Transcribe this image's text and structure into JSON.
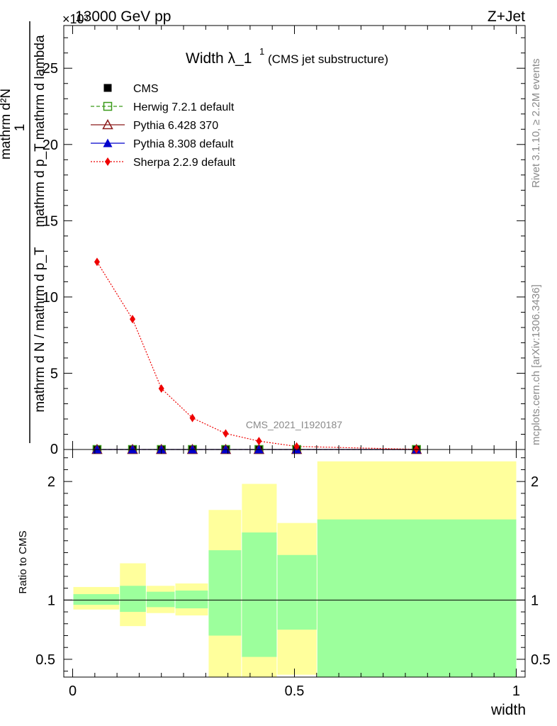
{
  "header": {
    "energy": "13000 GeV pp",
    "process": "Z+Jet",
    "exponent": "×10³"
  },
  "title": {
    "main": "Width λ_1",
    "sup": "1",
    "sub": "(CMS jet substructure)"
  },
  "side_labels": {
    "rivet": "Rivet 3.1.10, ≥ 2.2M events",
    "mcplots": "mcplots.cern.ch [arXiv:1306.3436]"
  },
  "watermark": "CMS_2021_I1920187",
  "axes": {
    "ylabel_top_numerator": "mathrm d²N",
    "ylabel_top_denominator": "mathrm d p_T mathrm d lambda",
    "ylabel_top_prefix_num": "1",
    "ylabel_top_prefix_den": "mathrm d N / mathrm d p_T",
    "ylabel_bottom": "Ratio to CMS",
    "xlabel": "width"
  },
  "colors": {
    "cms": "#000000",
    "herwig": "#3a9a1a",
    "pythia6": "#8b1a1a",
    "pythia8": "#0000cc",
    "sherpa": "#ee0000",
    "band_inner": "#9cff9c",
    "band_outer": "#ffff9c"
  },
  "chart_data": {
    "main_panel": {
      "type": "line",
      "xlim": [
        -0.02,
        1.02
      ],
      "ylim": [
        0,
        27.8
      ],
      "y_multiplier": "×10³",
      "x_ticks": [
        "0",
        "0.5",
        "1"
      ],
      "y_ticks": [
        "5",
        "10",
        "15",
        "20",
        "25"
      ],
      "y_tick_values": [
        5,
        10,
        15,
        20,
        25
      ],
      "legend_position": "top-left",
      "series": [
        {
          "name": "CMS",
          "marker": "square",
          "x": [
            0.055,
            0.135,
            0.2,
            0.27,
            0.345,
            0.42,
            0.505,
            0.775
          ],
          "y": [
            0.0,
            0.0,
            0.0,
            0.0,
            0.0,
            0.0,
            0.0,
            0.0
          ]
        },
        {
          "name": "Herwig 7.2.1 default",
          "marker": "open-square",
          "x": [
            0.055,
            0.135,
            0.2,
            0.27,
            0.345,
            0.42,
            0.505,
            0.775
          ],
          "y": [
            0.0,
            0.0,
            0.0,
            0.0,
            0.0,
            0.0,
            0.0,
            0.0
          ]
        },
        {
          "name": "Pythia 6.428 370",
          "marker": "open-triangle",
          "x": [
            0.055,
            0.135,
            0.2,
            0.27,
            0.345,
            0.42,
            0.505,
            0.775
          ],
          "y": [
            0.0,
            0.0,
            0.0,
            0.0,
            0.0,
            0.0,
            0.0,
            0.0
          ]
        },
        {
          "name": "Pythia 8.308 default",
          "marker": "triangle",
          "x": [
            0.055,
            0.135,
            0.2,
            0.27,
            0.345,
            0.42,
            0.505,
            0.775
          ],
          "y": [
            0.0,
            0.0,
            0.0,
            0.0,
            0.0,
            0.0,
            0.0,
            0.0
          ]
        },
        {
          "name": "Sherpa 2.2.9 default",
          "marker": "diamond",
          "x": [
            0.055,
            0.135,
            0.2,
            0.27,
            0.345,
            0.42,
            0.505,
            0.775
          ],
          "y": [
            12.3,
            8.55,
            4.0,
            2.07,
            1.05,
            0.55,
            0.2,
            0.01
          ]
        }
      ]
    },
    "ratio_panel": {
      "type": "area",
      "xlim": [
        -0.02,
        1.02
      ],
      "ylim": [
        0.35,
        2.27
      ],
      "y_ticks": [
        "0.5",
        "1",
        "2"
      ],
      "y_tick_values": [
        0.5,
        1,
        2
      ],
      "reference_line": 1,
      "bins": [
        {
          "x": [
            0.0,
            0.105
          ],
          "inner": [
            0.96,
            1.05
          ],
          "outer": [
            0.92,
            1.11
          ]
        },
        {
          "x": [
            0.105,
            0.165
          ],
          "inner": [
            0.9,
            1.12
          ],
          "outer": [
            0.78,
            1.31
          ]
        },
        {
          "x": [
            0.165,
            0.23
          ],
          "inner": [
            0.94,
            1.07
          ],
          "outer": [
            0.89,
            1.12
          ]
        },
        {
          "x": [
            0.23,
            0.305
          ],
          "inner": [
            0.93,
            1.08
          ],
          "outer": [
            0.87,
            1.14
          ]
        },
        {
          "x": [
            0.305,
            0.38
          ],
          "inner": [
            0.7,
            1.42
          ],
          "outer": [
            0.35,
            1.76
          ]
        },
        {
          "x": [
            0.38,
            0.46
          ],
          "inner": [
            0.52,
            1.57
          ],
          "outer": [
            0.35,
            1.98
          ]
        },
        {
          "x": [
            0.46,
            0.55
          ],
          "inner": [
            0.75,
            1.38
          ],
          "outer": [
            0.37,
            1.65
          ]
        },
        {
          "x": [
            0.55,
            1.0
          ],
          "inner": [
            0.35,
            1.68
          ],
          "outer": [
            0.35,
            2.17
          ]
        }
      ]
    }
  }
}
